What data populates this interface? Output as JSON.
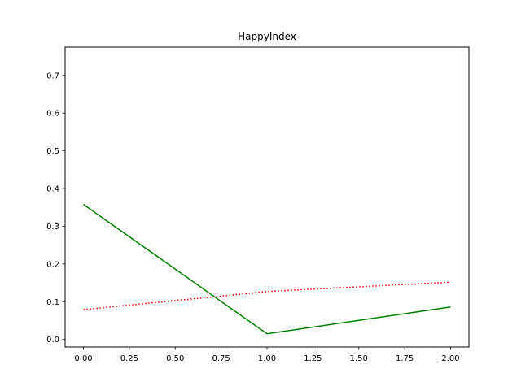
{
  "chart_data": {
    "type": "line",
    "title": "HappyIndex",
    "xlabel": "",
    "ylabel": "",
    "xlim": [
      -0.1,
      2.1
    ],
    "ylim": [
      -0.02,
      0.775
    ],
    "x_ticks": [
      0.0,
      0.25,
      0.5,
      0.75,
      1.0,
      1.25,
      1.5,
      1.75,
      2.0
    ],
    "x_tick_labels": [
      "0.00",
      "0.25",
      "0.50",
      "0.75",
      "1.00",
      "1.25",
      "1.50",
      "1.75",
      "2.00"
    ],
    "y_ticks": [
      0.0,
      0.1,
      0.2,
      0.3,
      0.4,
      0.5,
      0.6,
      0.7
    ],
    "y_tick_labels": [
      "0.0",
      "0.1",
      "0.2",
      "0.3",
      "0.4",
      "0.5",
      "0.6",
      "0.7"
    ],
    "grid": false,
    "legend": "none",
    "series": [
      {
        "color": "#008000",
        "line_style": "solid",
        "x": [
          0.0,
          1.0,
          2.0
        ],
        "values": [
          0.358,
          0.015,
          0.086
        ]
      },
      {
        "color": "#ff0000",
        "line_style": "dotted",
        "x": [
          0.0,
          1.0,
          2.0
        ],
        "values": [
          0.079,
          0.127,
          0.152
        ]
      }
    ]
  }
}
